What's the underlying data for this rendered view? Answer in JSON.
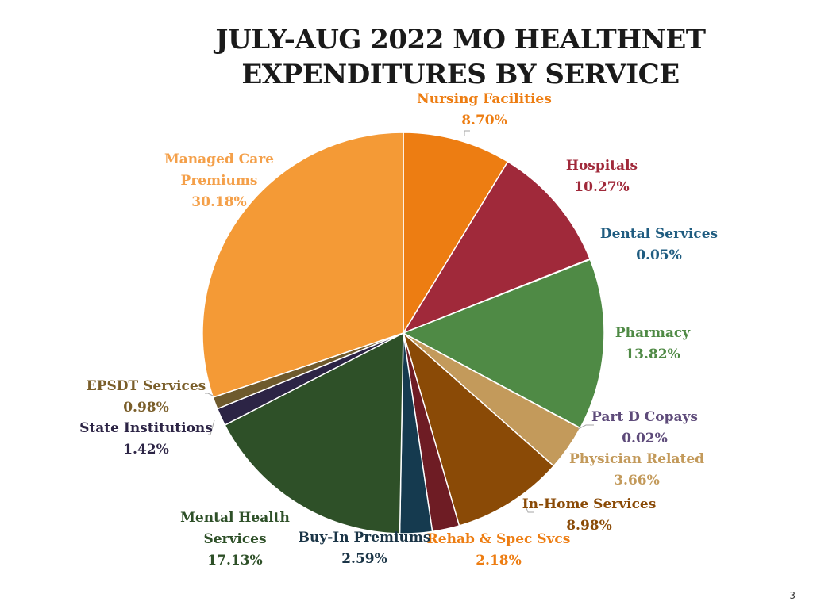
{
  "title_lines": [
    "JULY-AUG 2022 MO HEALTHNET",
    "EXPENDITURES BY SERVICE"
  ],
  "page_number": "3",
  "chart_data": {
    "type": "pie",
    "title": "JULY-AUG 2022 MO HEALTHNET EXPENDITURES BY SERVICE",
    "slices": [
      {
        "name": "Nursing Facilities",
        "name_lines": [
          "Nursing Facilities"
        ],
        "value": 8.7,
        "label": "8.70%",
        "color": "#ED7D12",
        "text_color": "#ED7D12"
      },
      {
        "name": "Hospitals",
        "name_lines": [
          "Hospitals"
        ],
        "value": 10.27,
        "label": "10.27%",
        "color": "#A0293A",
        "text_color": "#A0293A"
      },
      {
        "name": "Dental Services",
        "name_lines": [
          "Dental Services"
        ],
        "value": 0.05,
        "label": "0.05%",
        "color": "#1F5C80",
        "text_color": "#1F5C80"
      },
      {
        "name": "Pharmacy",
        "name_lines": [
          "Pharmacy"
        ],
        "value": 13.82,
        "label": "13.82%",
        "color": "#4F8A45",
        "text_color": "#4F8A45"
      },
      {
        "name": "Part D Copays",
        "name_lines": [
          "Part D Copays"
        ],
        "value": 0.02,
        "label": "0.02%",
        "color": "#5E4B7A",
        "text_color": "#5E4B7A"
      },
      {
        "name": "Physician Related",
        "name_lines": [
          "Physician Related"
        ],
        "value": 3.66,
        "label": "3.66%",
        "color": "#C39A5B",
        "text_color": "#C39A5B"
      },
      {
        "name": "In-Home Services",
        "name_lines": [
          "In-Home Services"
        ],
        "value": 8.98,
        "label": "8.98%",
        "color": "#8A4A06",
        "text_color": "#8A4A06"
      },
      {
        "name": "Rehab & Spec Svcs",
        "name_lines": [
          "Rehab & Spec Svcs"
        ],
        "value": 2.18,
        "label": "2.18%",
        "color": "#6E1C24",
        "text_color": "#ED7D12"
      },
      {
        "name": "Buy-In Premiums",
        "name_lines": [
          "Buy-In Premiums"
        ],
        "value": 2.59,
        "label": "2.59%",
        "color": "#153A4F",
        "text_color": "#1A3446"
      },
      {
        "name": "Mental Health Services",
        "name_lines": [
          "Mental Health",
          "Services"
        ],
        "value": 17.13,
        "label": "17.13%",
        "color": "#2E5028",
        "text_color": "#2E5028"
      },
      {
        "name": "State Institutions",
        "name_lines": [
          "State Institutions"
        ],
        "value": 1.42,
        "label": "1.42%",
        "color": "#2C2445",
        "text_color": "#2C2445"
      },
      {
        "name": "EPSDT Services",
        "name_lines": [
          "EPSDT Services"
        ],
        "value": 0.98,
        "label": "0.98%",
        "color": "#6E5A2D",
        "text_color": "#7A5E2A"
      },
      {
        "name": "Managed Care Premiums",
        "name_lines": [
          "Managed Care",
          "Premiums"
        ],
        "value": 30.18,
        "label": "30.18%",
        "color": "#F49A36",
        "text_color": "#F4A04A"
      }
    ]
  }
}
